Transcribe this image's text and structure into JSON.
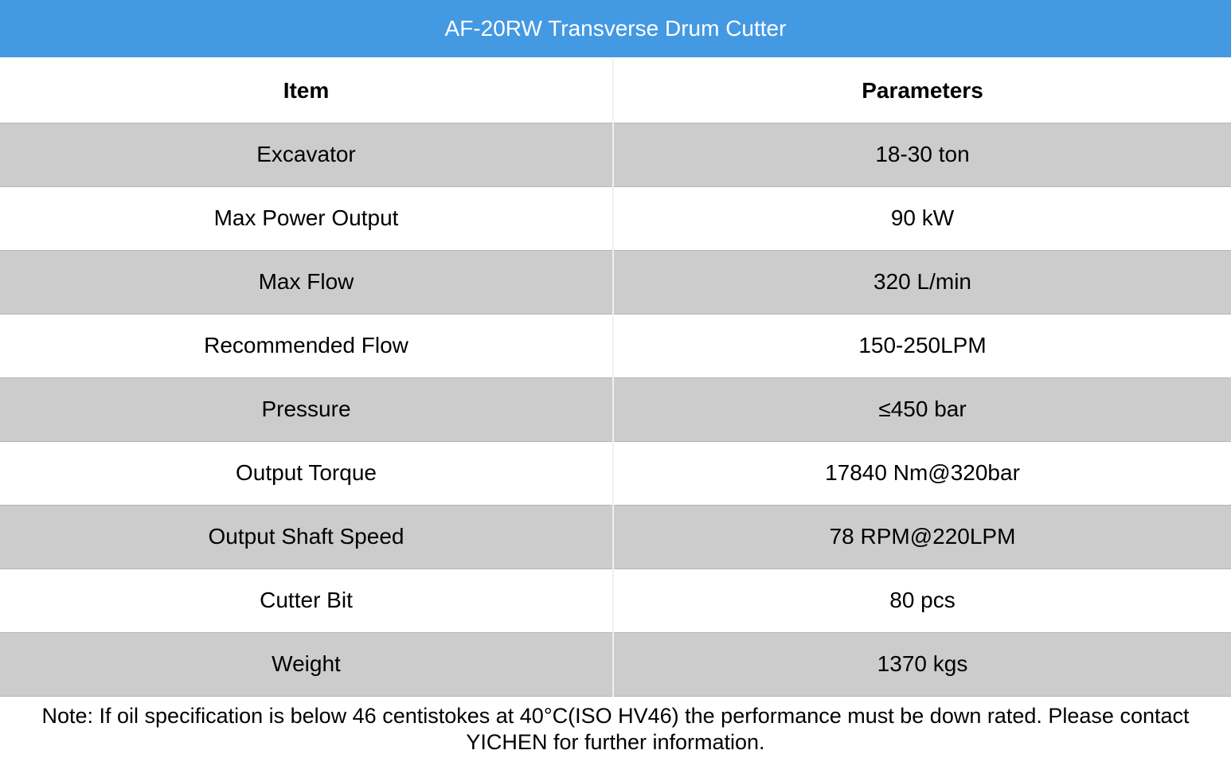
{
  "title": "AF-20RW Transverse Drum Cutter",
  "headers": {
    "item": "Item",
    "parameters": "Parameters"
  },
  "rows": [
    {
      "item": "Excavator",
      "value": "18-30 ton"
    },
    {
      "item": "Max Power Output",
      "value": "90 kW"
    },
    {
      "item": "Max Flow",
      "value": "320 L/min"
    },
    {
      "item": "Recommended Flow",
      "value": "150-250LPM"
    },
    {
      "item": "Pressure",
      "value": "≤450 bar"
    },
    {
      "item": "Output Torque",
      "value": "17840 Nm@320bar"
    },
    {
      "item": "Output Shaft Speed",
      "value": "78 RPM@220LPM"
    },
    {
      "item": "Cutter Bit",
      "value": "80 pcs"
    },
    {
      "item": "Weight",
      "value": "1370 kgs"
    }
  ],
  "note": "Note: If oil specification is below 46 centistokes at 40°C(ISO HV46) the performance must be down rated. Please contact YICHEN for further information.",
  "colors": {
    "title_bg": "#4499e3",
    "stripe": "#cccccc"
  }
}
